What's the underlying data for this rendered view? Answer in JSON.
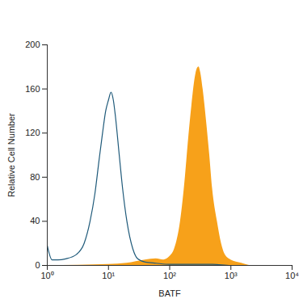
{
  "chart_data": {
    "type": "line",
    "x_label": "BATF",
    "y_label": "Relative Cell Number",
    "log": "x",
    "xlim": [
      1,
      10000
    ],
    "xticks": [
      {
        "value": 1,
        "label": "10⁰"
      },
      {
        "value": 10,
        "label": "10¹"
      },
      {
        "value": 100,
        "label": "10²"
      },
      {
        "value": 1000,
        "label": "10³"
      },
      {
        "value": 10000,
        "label": "10⁴"
      }
    ],
    "ylim": [
      0,
      200
    ],
    "yticks": [
      0,
      40,
      80,
      120,
      160,
      200
    ],
    "grid": false,
    "series": [
      {
        "type": "area",
        "color": "#f7a11a",
        "x": [
          1,
          10,
          20,
          40,
          60,
          80,
          100,
          120,
          150,
          180,
          200,
          230,
          260,
          280,
          300,
          320,
          350,
          400,
          450,
          500,
          600,
          700,
          800,
          1000,
          1500,
          2000
        ],
        "values": [
          0,
          1,
          2,
          5,
          6,
          5,
          8,
          15,
          40,
          80,
          110,
          145,
          170,
          178,
          180,
          175,
          160,
          130,
          100,
          70,
          40,
          20,
          10,
          5,
          2,
          0
        ]
      },
      {
        "type": "line",
        "color": "#1f5a7a",
        "x": [
          1,
          1.2,
          1.5,
          2,
          3,
          4,
          5,
          6,
          7,
          8,
          9,
          10,
          11,
          12,
          13,
          15,
          17,
          20,
          25,
          30,
          40,
          60,
          100,
          200,
          500,
          1000,
          10000
        ],
        "values": [
          18,
          5,
          5,
          6,
          10,
          20,
          40,
          65,
          95,
          120,
          140,
          150,
          157,
          150,
          135,
          100,
          70,
          40,
          15,
          6,
          3,
          2,
          1,
          1,
          1,
          0,
          0
        ]
      }
    ]
  }
}
